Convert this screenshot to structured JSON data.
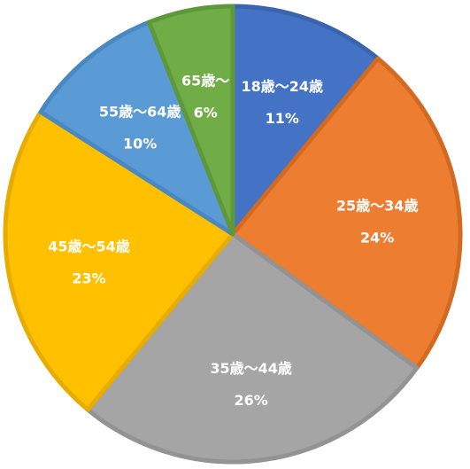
{
  "chart_data": {
    "type": "pie",
    "title": "",
    "start_angle_deg": 0,
    "direction": "clockwise",
    "slices": [
      {
        "label": "18歳〜24歳",
        "value": 11,
        "value_label": "11%",
        "color": "#4472C4",
        "border": "#3A64AE"
      },
      {
        "label": "25歳〜34歳",
        "value": 24,
        "value_label": "24%",
        "color": "#ED7D31",
        "border": "#D26A22"
      },
      {
        "label": "35歳〜44歳",
        "value": 26,
        "value_label": "26%",
        "color": "#A5A5A5",
        "border": "#939393"
      },
      {
        "label": "45歳〜54歳",
        "value": 23,
        "value_label": "23%",
        "color": "#FFC000",
        "border": "#E6AC00"
      },
      {
        "label": "55歳〜64歳",
        "value": 10,
        "value_label": "10%",
        "color": "#5B9BD5",
        "border": "#4A88C2"
      },
      {
        "label": "65歳〜",
        "value": 6,
        "value_label": "6%",
        "color": "#70AD47",
        "border": "#5F983A"
      }
    ]
  }
}
